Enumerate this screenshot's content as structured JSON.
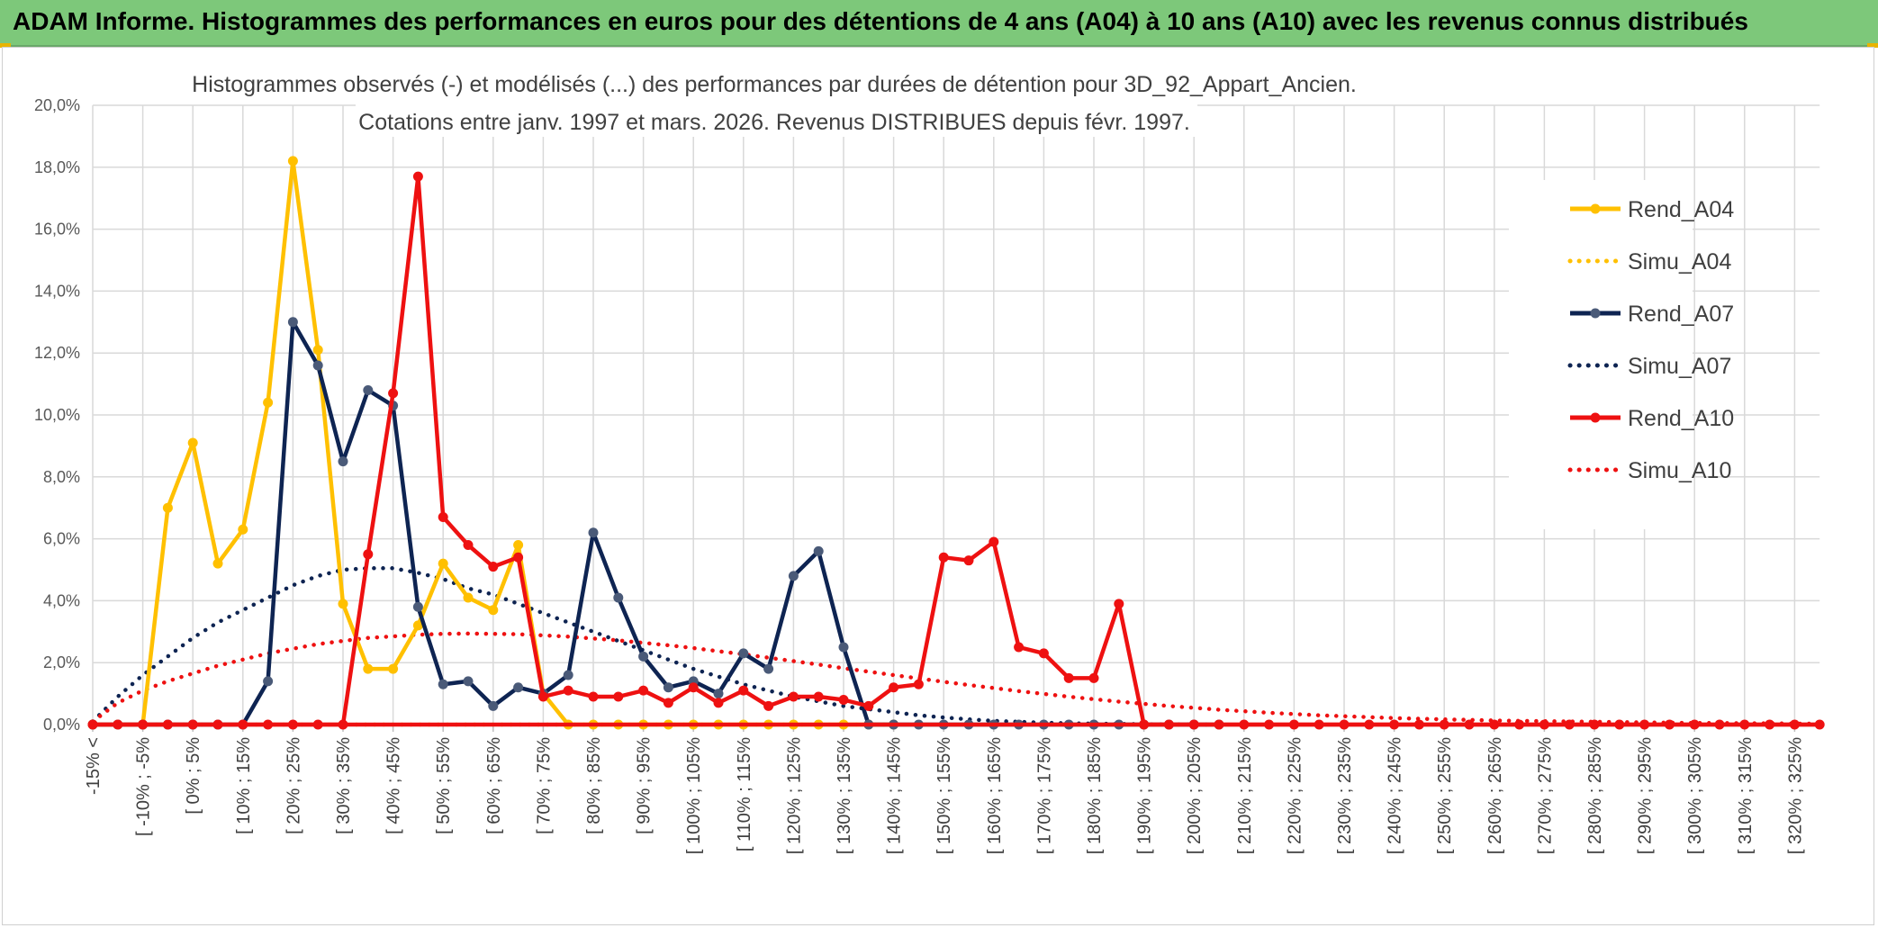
{
  "banner": {
    "title": "ADAM Informe. Histogrammes des performances en euros pour des détentions de 4 ans (A04) à 10 ans (A10) avec les revenus connus distribués"
  },
  "colors": {
    "banner_bg": "#7dc87a",
    "A04": "#ffc000",
    "A07": "#0e2452",
    "A10": "#ee1111",
    "A07_marker": "#4a5a78"
  },
  "chart_data": {
    "type": "line",
    "title": "Histogrammes observés (-) et modélisés (...) des performances par durées de détention pour 3D_92_Appart_Ancien.",
    "subtitle": "Cotations entre janv. 1997 et mars. 2026. Revenus DISTRIBUES depuis févr. 1997.",
    "xlabel": "",
    "ylabel": "",
    "ylim": [
      0,
      20
    ],
    "yticks": [
      "0,0%",
      "2,0%",
      "4,0%",
      "6,0%",
      "8,0%",
      "10,0%",
      "12,0%",
      "14,0%",
      "16,0%",
      "18,0%",
      "20,0%"
    ],
    "xticks": [
      "-15% <",
      "[ -10% ; -5%",
      "[ 0% ; 5%",
      "[ 10% ; 15%",
      "[ 20% ; 25%",
      "[ 30% ; 35%",
      "[ 40% ; 45%",
      "[ 50% ; 55%",
      "[ 60% ; 65%",
      "[ 70% ; 75%",
      "[ 80% ; 85%",
      "[ 90% ; 95%",
      "[ 100% ; 105%",
      "[ 110% ; 115%",
      "[ 120% ; 125%",
      "[ 130% ; 135%",
      "[ 140% ; 145%",
      "[ 150% ; 155%",
      "[ 160% ; 165%",
      "[ 170% ; 175%",
      "[ 180% ; 185%",
      "[ 190% ; 195%",
      "[ 200% ; 205%",
      "[ 210% ; 215%",
      "[ 220% ; 225%",
      "[ 230% ; 235%",
      "[ 240% ; 245%",
      "[ 250% ; 255%",
      "[ 260% ; 265%",
      "[ 270% ; 275%",
      "[ 280% ; 285%",
      "[ 290% ; 295%",
      "[ 300% ; 305%",
      "[ 310% ; 315%",
      "[ 320% ; 325%"
    ],
    "n_categories": 70,
    "legend_position": "right",
    "series": [
      {
        "name": "Rend_A04",
        "key": "A04",
        "style": "solid",
        "values": [
          0,
          0,
          0,
          7.0,
          9.1,
          5.2,
          6.3,
          10.4,
          18.2,
          12.1,
          3.9,
          1.8,
          1.8,
          3.2,
          5.2,
          4.1,
          3.7,
          5.8,
          1.0,
          0,
          0,
          0,
          0,
          0,
          0,
          0,
          0,
          0,
          0,
          0,
          0,
          0,
          0
        ]
      },
      {
        "name": "Simu_A04",
        "key": "A04",
        "style": "dotted",
        "values": [
          0,
          0,
          0,
          0,
          0,
          0,
          0,
          0,
          0,
          0,
          0,
          0,
          0,
          0,
          0,
          0,
          0,
          0,
          0,
          0,
          0,
          0,
          0,
          0,
          0,
          0,
          0,
          0,
          0,
          0,
          0,
          0,
          0
        ]
      },
      {
        "name": "Rend_A07",
        "key": "A07",
        "style": "solid",
        "values": [
          0,
          0,
          0,
          0,
          0,
          0,
          0,
          1.4,
          13.0,
          11.6,
          8.5,
          10.8,
          10.3,
          3.8,
          1.3,
          1.4,
          0.6,
          1.2,
          1.0,
          1.6,
          6.2,
          4.1,
          2.2,
          1.2,
          1.4,
          1.0,
          2.3,
          1.8,
          4.8,
          5.6,
          2.5,
          0,
          0,
          0,
          0,
          0,
          0,
          0,
          0,
          0,
          0,
          0,
          0,
          0,
          0,
          0
        ]
      },
      {
        "name": "Simu_A07",
        "key": "A07",
        "style": "dotted",
        "values": [
          0.1,
          0.9,
          1.6,
          2.2,
          2.8,
          3.3,
          3.7,
          4.1,
          4.5,
          4.8,
          5.0,
          5.05,
          5.05,
          4.9,
          4.7,
          4.4,
          4.2,
          3.9,
          3.6,
          3.3,
          3.0,
          2.7,
          2.4,
          2.1,
          1.8,
          1.55,
          1.3,
          1.1,
          0.9,
          0.75,
          0.6,
          0.5,
          0.4,
          0.3,
          0.23,
          0.17,
          0.12,
          0.09,
          0.06,
          0.04,
          0.03,
          0.02,
          0.01,
          0.01,
          0,
          0
        ]
      },
      {
        "name": "Rend_A10",
        "key": "A10",
        "style": "solid",
        "values": [
          0,
          0,
          0,
          0,
          0,
          0,
          0,
          0,
          0,
          0,
          0,
          5.5,
          10.7,
          17.7,
          6.7,
          5.8,
          5.1,
          5.4,
          0.9,
          1.1,
          0.9,
          0.9,
          1.1,
          0.7,
          1.2,
          0.7,
          1.1,
          0.6,
          0.9,
          0.9,
          0.8,
          0.6,
          1.2,
          1.3,
          5.4,
          5.3,
          5.9,
          2.5,
          2.3,
          1.5,
          1.5,
          3.9,
          0,
          0,
          0,
          0,
          0,
          0,
          0,
          0,
          0,
          0,
          0,
          0,
          0,
          0,
          0,
          0,
          0,
          0,
          0,
          0,
          0,
          0,
          0,
          0,
          0,
          0,
          0,
          0
        ]
      },
      {
        "name": "Simu_A10",
        "key": "A10",
        "style": "dotted",
        "values": [
          0.1,
          0.7,
          1.1,
          1.4,
          1.65,
          1.9,
          2.1,
          2.3,
          2.45,
          2.6,
          2.7,
          2.8,
          2.85,
          2.9,
          2.93,
          2.94,
          2.93,
          2.92,
          2.88,
          2.84,
          2.78,
          2.72,
          2.64,
          2.56,
          2.47,
          2.37,
          2.27,
          2.16,
          2.05,
          1.94,
          1.82,
          1.71,
          1.6,
          1.49,
          1.38,
          1.28,
          1.18,
          1.08,
          0.99,
          0.9,
          0.82,
          0.74,
          0.67,
          0.6,
          0.54,
          0.48,
          0.43,
          0.38,
          0.34,
          0.3,
          0.27,
          0.24,
          0.21,
          0.19,
          0.17,
          0.15,
          0.13,
          0.12,
          0.11,
          0.1,
          0.09,
          0.08,
          0.07,
          0.06,
          0.05,
          0.05,
          0.04,
          0.04,
          0.03,
          0.03
        ]
      }
    ]
  }
}
